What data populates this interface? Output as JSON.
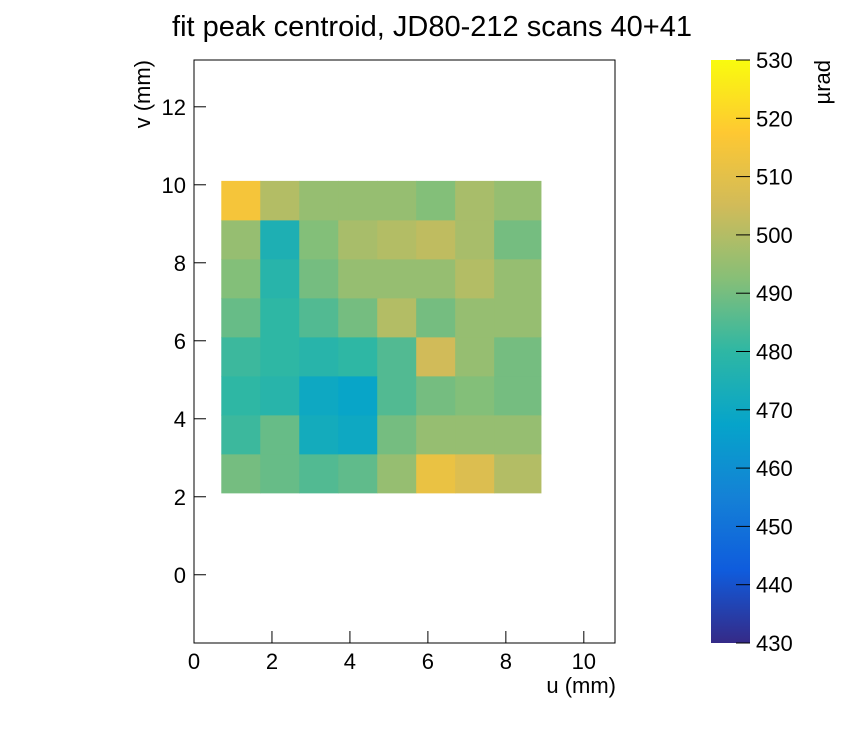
{
  "chart_data": {
    "type": "heatmap",
    "title": "fit peak centroid, JD80-212 scans 40+41",
    "xlabel": "u (mm)",
    "ylabel": "v (mm)",
    "zlabel": "µrad",
    "xlim": [
      0,
      10.8
    ],
    "xticks": [
      0,
      2,
      4,
      6,
      8,
      10
    ],
    "ylim": [
      -1.75,
      13.2
    ],
    "yticks": [
      0,
      2,
      4,
      6,
      8,
      10,
      12
    ],
    "zlim": [
      430,
      530
    ],
    "zticks": [
      430,
      440,
      450,
      460,
      470,
      480,
      490,
      500,
      510,
      520,
      530
    ],
    "colormap": [
      "#352a87",
      "#0f5cdd",
      "#1481d6",
      "#06a4ca",
      "#2eb7a4",
      "#87bf77",
      "#d1bb59",
      "#fec832",
      "#f9fb0e"
    ],
    "xbins": [
      0.7,
      1.7,
      2.7,
      3.7,
      4.7,
      5.7,
      6.7,
      7.7,
      8.9
    ],
    "ybins": [
      2.1,
      3.1,
      4.1,
      5.1,
      6.1,
      7.1,
      8.1,
      9.1,
      10.1
    ],
    "values": [
      [
        490,
        488,
        485,
        487,
        495,
        512,
        508,
        500
      ],
      [
        482,
        488,
        472,
        470,
        490,
        495,
        495,
        495
      ],
      [
        480,
        478,
        470,
        468,
        485,
        490,
        492,
        490
      ],
      [
        482,
        480,
        478,
        480,
        485,
        505,
        495,
        490
      ],
      [
        488,
        480,
        485,
        490,
        500,
        490,
        495,
        495
      ],
      [
        492,
        478,
        490,
        495,
        495,
        495,
        500,
        495
      ],
      [
        495,
        475,
        492,
        498,
        500,
        502,
        498,
        490
      ],
      [
        515,
        500,
        495,
        495,
        495,
        492,
        498,
        495
      ]
    ]
  }
}
